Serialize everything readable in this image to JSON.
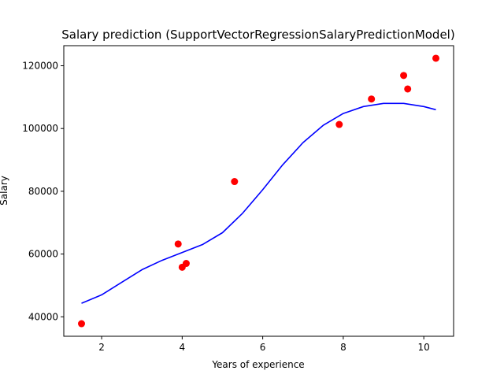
{
  "chart_data": {
    "type": "scatter",
    "title": "Salary prediction (SupportVectorRegressionSalaryPredictionModel)",
    "xlabel": "Years of experience",
    "ylabel": "Salary",
    "xlim": [
      1.06,
      10.74
    ],
    "ylim": [
      33800,
      126400
    ],
    "xticks": [
      2,
      4,
      6,
      8,
      10
    ],
    "yticks": [
      40000,
      60000,
      80000,
      100000,
      120000
    ],
    "grid": false,
    "series": [
      {
        "kind": "scatter",
        "color": "#ff0000",
        "points": [
          {
            "x": 1.5,
            "y": 37800
          },
          {
            "x": 3.9,
            "y": 63200
          },
          {
            "x": 4.0,
            "y": 55800
          },
          {
            "x": 4.1,
            "y": 57000
          },
          {
            "x": 5.3,
            "y": 83100
          },
          {
            "x": 7.9,
            "y": 101300
          },
          {
            "x": 8.7,
            "y": 109400
          },
          {
            "x": 9.5,
            "y": 116900
          },
          {
            "x": 9.6,
            "y": 112600
          },
          {
            "x": 10.3,
            "y": 122400
          }
        ]
      },
      {
        "kind": "line",
        "color": "#0000ff",
        "points": [
          {
            "x": 1.5,
            "y": 44300
          },
          {
            "x": 2.0,
            "y": 47000
          },
          {
            "x": 2.5,
            "y": 51000
          },
          {
            "x": 3.0,
            "y": 55000
          },
          {
            "x": 3.5,
            "y": 58000
          },
          {
            "x": 4.0,
            "y": 60500
          },
          {
            "x": 4.5,
            "y": 63000
          },
          {
            "x": 5.0,
            "y": 66800
          },
          {
            "x": 5.5,
            "y": 73000
          },
          {
            "x": 6.0,
            "y": 80500
          },
          {
            "x": 6.5,
            "y": 88500
          },
          {
            "x": 7.0,
            "y": 95500
          },
          {
            "x": 7.5,
            "y": 101000
          },
          {
            "x": 8.0,
            "y": 104800
          },
          {
            "x": 8.5,
            "y": 107000
          },
          {
            "x": 9.0,
            "y": 108000
          },
          {
            "x": 9.5,
            "y": 108000
          },
          {
            "x": 10.0,
            "y": 107000
          },
          {
            "x": 10.3,
            "y": 106000
          }
        ]
      }
    ]
  }
}
